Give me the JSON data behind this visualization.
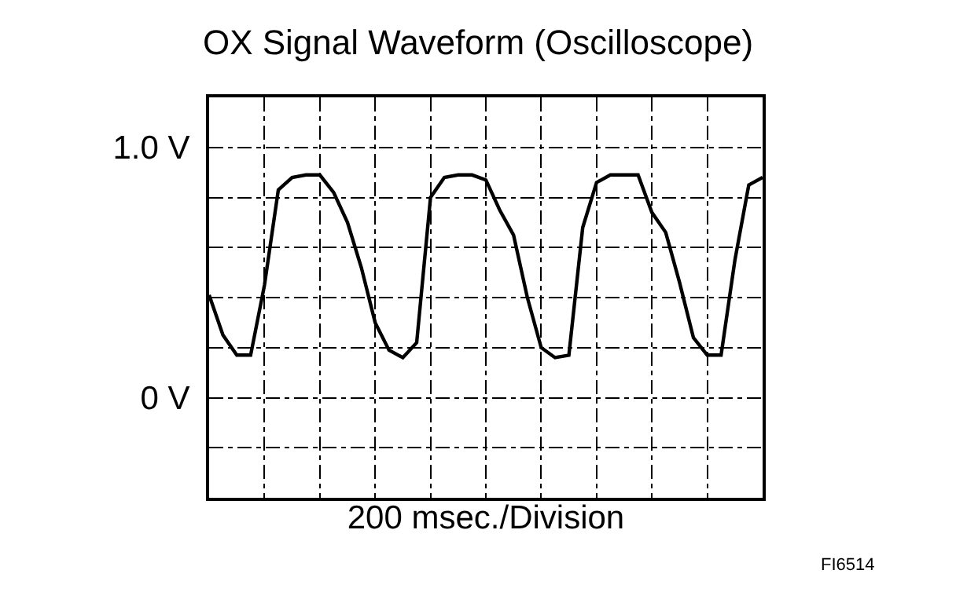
{
  "chart_data": {
    "type": "line",
    "title": "OX Signal Waveform (Oscilloscope)",
    "xlabel": "200 msec./Division",
    "annotations": [
      "FI6514"
    ],
    "categories": [
      null,
      null,
      null,
      null,
      null,
      null,
      null,
      null,
      null,
      null,
      null,
      null,
      null,
      null,
      null,
      null,
      null,
      null,
      null,
      null,
      null,
      null,
      null,
      null,
      null,
      null,
      null,
      null,
      null,
      null,
      null,
      null,
      null,
      null,
      null,
      null,
      null,
      null,
      null,
      null,
      null
    ],
    "series": [
      {
        "color": "#000000",
        "values": [
          0.41,
          0.25,
          0.17,
          0.17,
          0.45,
          0.83,
          0.88,
          0.89,
          0.89,
          0.82,
          0.7,
          0.52,
          0.3,
          0.19,
          0.16,
          0.22,
          0.8,
          0.88,
          0.89,
          0.89,
          0.87,
          0.75,
          0.65,
          0.4,
          0.2,
          0.16,
          0.17,
          0.68,
          0.86,
          0.89,
          0.89,
          0.89,
          0.74,
          0.66,
          0.46,
          0.24,
          0.17,
          0.17,
          0.55,
          0.85,
          0.88
        ]
      }
    ],
    "ylim": [
      -0.4,
      1.2
    ],
    "yticks": [
      {
        "value": -0.4,
        "label": null
      },
      {
        "value": -0.2,
        "label": null
      },
      {
        "value": 0,
        "label": "0 V"
      },
      {
        "value": 0.2,
        "label": null
      },
      {
        "value": 0.4,
        "label": null
      },
      {
        "value": 0.6,
        "label": null
      },
      {
        "value": 0.8,
        "label": null
      },
      {
        "value": 1.0,
        "label": "1.0 V"
      },
      {
        "value": 1.2,
        "label": null
      }
    ],
    "grid": true,
    "marker": "none",
    "line_style": "solid",
    "tick_labels": "y"
  }
}
